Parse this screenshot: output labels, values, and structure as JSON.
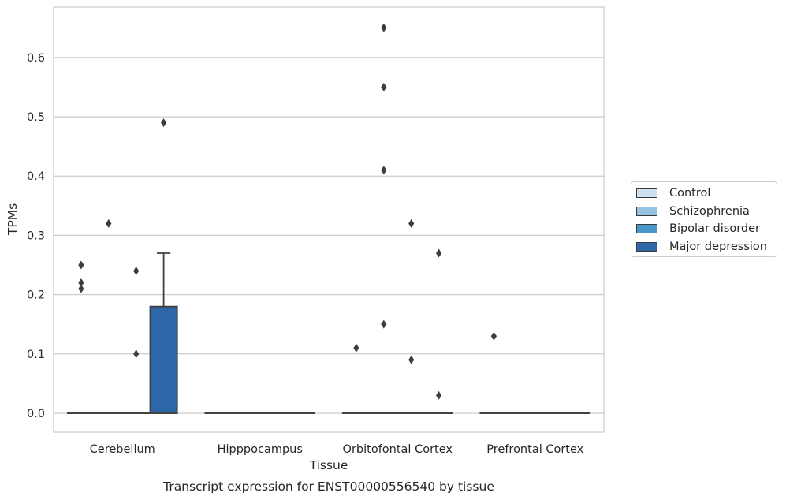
{
  "chart_data": {
    "type": "box",
    "caption": "Transcript expression for ENST00000556540 by tissue",
    "xlabel": "Tissue",
    "ylabel": "TPMs",
    "ylim": [
      -0.032,
      0.685
    ],
    "yticks": [
      0.0,
      0.1,
      0.2,
      0.3,
      0.4,
      0.5,
      0.6
    ],
    "ytick_labels": [
      "0.0",
      "0.1",
      "0.2",
      "0.3",
      "0.4",
      "0.5",
      "0.6"
    ],
    "grid": "horizontal",
    "legend_position": "right",
    "categories": [
      "Cerebellum",
      "Hipppocampus",
      "Orbitofontal Cortex",
      "Prefrontal Cortex"
    ],
    "series": [
      {
        "name": "Control",
        "color": "#d0e1f2",
        "boxes": [
          {
            "q1": 0,
            "median": 0,
            "q3": 0,
            "whisker_low": 0,
            "whisker_high": 0,
            "outliers": [
              0.25,
              0.22,
              0.21
            ]
          },
          {
            "q1": 0,
            "median": 0,
            "q3": 0,
            "whisker_low": 0,
            "whisker_high": 0,
            "outliers": []
          },
          {
            "q1": 0,
            "median": 0,
            "q3": 0,
            "whisker_low": 0,
            "whisker_high": 0,
            "outliers": [
              0.11
            ]
          },
          {
            "q1": 0,
            "median": 0,
            "q3": 0,
            "whisker_low": 0,
            "whisker_high": 0,
            "outliers": [
              0.13
            ]
          }
        ]
      },
      {
        "name": "Schizophrenia",
        "color": "#94c4df",
        "boxes": [
          {
            "q1": 0,
            "median": 0,
            "q3": 0,
            "whisker_low": 0,
            "whisker_high": 0,
            "outliers": [
              0.32
            ]
          },
          {
            "q1": 0,
            "median": 0,
            "q3": 0,
            "whisker_low": 0,
            "whisker_high": 0,
            "outliers": []
          },
          {
            "q1": 0,
            "median": 0,
            "q3": 0,
            "whisker_low": 0,
            "whisker_high": 0,
            "outliers": [
              0.65,
              0.55,
              0.41,
              0.15
            ]
          },
          {
            "q1": 0,
            "median": 0,
            "q3": 0,
            "whisker_low": 0,
            "whisker_high": 0,
            "outliers": []
          }
        ]
      },
      {
        "name": "Bipolar disorder",
        "color": "#4a98c9",
        "boxes": [
          {
            "q1": 0,
            "median": 0,
            "q3": 0,
            "whisker_low": 0,
            "whisker_high": 0,
            "outliers": [
              0.24,
              0.1
            ]
          },
          {
            "q1": 0,
            "median": 0,
            "q3": 0,
            "whisker_low": 0,
            "whisker_high": 0,
            "outliers": []
          },
          {
            "q1": 0,
            "median": 0,
            "q3": 0,
            "whisker_low": 0,
            "whisker_high": 0,
            "outliers": [
              0.32,
              0.09
            ]
          },
          {
            "q1": 0,
            "median": 0,
            "q3": 0,
            "whisker_low": 0,
            "whisker_high": 0,
            "outliers": []
          }
        ]
      },
      {
        "name": "Major depression",
        "color": "#2e67a8",
        "boxes": [
          {
            "q1": 0,
            "median": 0,
            "q3": 0.18,
            "whisker_low": 0,
            "whisker_high": 0.27,
            "outliers": [
              0.49
            ]
          },
          {
            "q1": 0,
            "median": 0,
            "q3": 0,
            "whisker_low": 0,
            "whisker_high": 0,
            "outliers": []
          },
          {
            "q1": 0,
            "median": 0,
            "q3": 0,
            "whisker_low": 0,
            "whisker_high": 0,
            "outliers": [
              0.27,
              0.03
            ]
          },
          {
            "q1": 0,
            "median": 0,
            "q3": 0,
            "whisker_low": 0,
            "whisker_high": 0,
            "outliers": []
          }
        ]
      }
    ]
  }
}
